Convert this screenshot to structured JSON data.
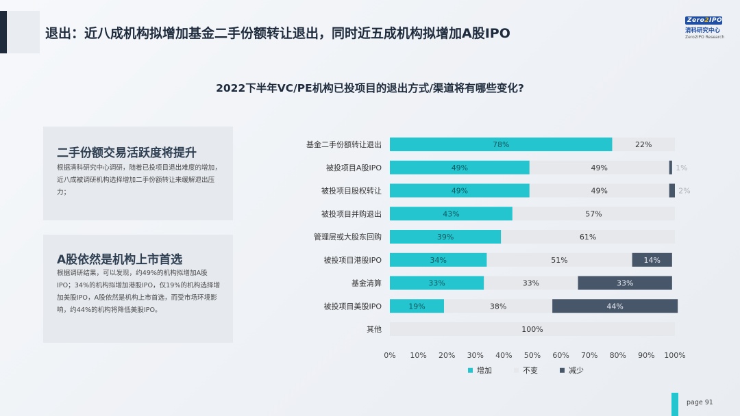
{
  "header": {
    "title": "退出：近八成机构拟增加基金二手份额转让退出，同时近五成机构拟增加A股IPO",
    "logo": {
      "brand": "Zero2IPO",
      "cn": "清科研究中心",
      "en": "Zero2IPO Research"
    }
  },
  "cards": [
    {
      "title": "二手份额交易活跃度将提升",
      "body": "根据清科研究中心调研，随着已投项目退出难度的增加，近八成被调研机构选择增加二手份额转让来缓解退出压力；"
    },
    {
      "title": "A股依然是机构上市首选",
      "body": "根据调研结果，可以发现，约49%的机构拟增加A股IPO；34%的机构拟增加港股IPO，仅19%的机构选择增加美股IPO，A股依然是机构上市首选，而受市场环境影响，约44%的机构将降低美股IPO。"
    }
  ],
  "chart_data": {
    "type": "bar",
    "orientation": "horizontal",
    "stacked": true,
    "title": "2022下半年VC/PE机构已投项目的退出方式/渠道将有哪些变化?",
    "categories": [
      "基金二手份额转让退出",
      "被投项目A股IPO",
      "被投项目股权转让",
      "被投项目并购退出",
      "管理层或大股东回购",
      "被投项目港股IPO",
      "基金清算",
      "被投项目美股IPO",
      "其他"
    ],
    "series": [
      {
        "name": "增加",
        "color": "#25c5cf",
        "values": [
          78,
          49,
          49,
          43,
          39,
          34,
          33,
          19,
          0
        ]
      },
      {
        "name": "不变",
        "color": "#e6e8ec",
        "values": [
          22,
          49,
          49,
          57,
          61,
          51,
          33,
          38,
          100
        ]
      },
      {
        "name": "减少",
        "color": "#48566a",
        "values": [
          0,
          1,
          2,
          0,
          0,
          14,
          33,
          44,
          0
        ]
      }
    ],
    "data_labels": [
      [
        "78%",
        "22%",
        ""
      ],
      [
        "49%",
        "49%",
        "1%"
      ],
      [
        "49%",
        "49%",
        "2%"
      ],
      [
        "43%",
        "57%",
        ""
      ],
      [
        "39%",
        "61%",
        ""
      ],
      [
        "34%",
        "51%",
        "14%"
      ],
      [
        "33%",
        "33%",
        "33%"
      ],
      [
        "19%",
        "38%",
        "44%"
      ],
      [
        "",
        "100%",
        ""
      ]
    ],
    "xlim": [
      0,
      100
    ],
    "xticks": [
      "0%",
      "10%",
      "20%",
      "30%",
      "40%",
      "50%",
      "60%",
      "70%",
      "80%",
      "90%",
      "100%"
    ],
    "legend_position": "bottom",
    "grid": false
  },
  "footer": {
    "page_label": "page  91"
  }
}
